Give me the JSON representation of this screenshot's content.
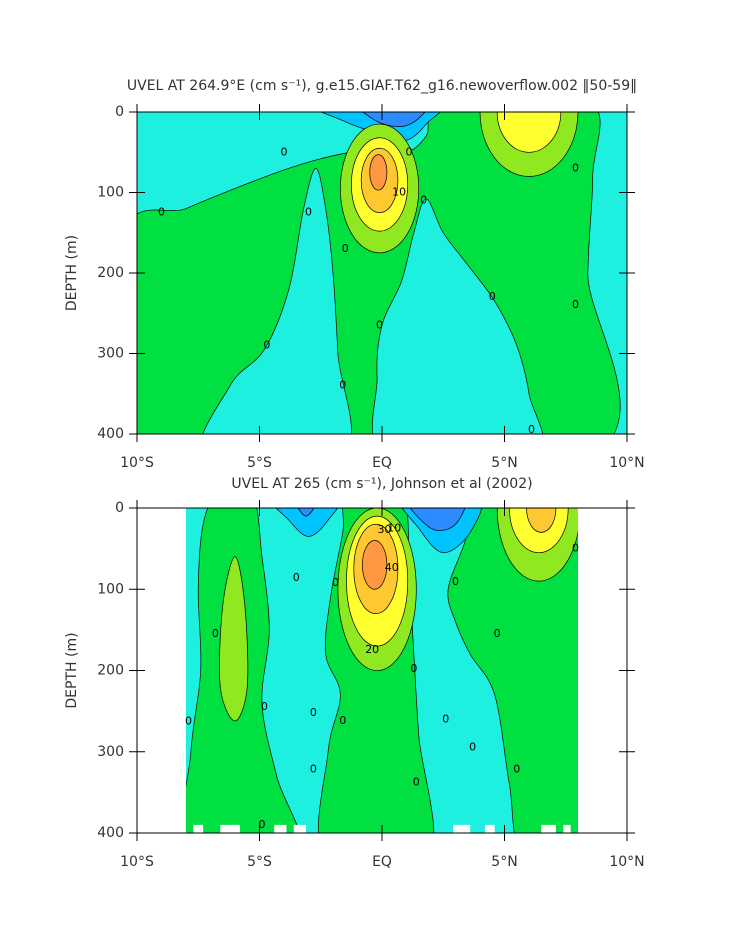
{
  "chart_data": [
    {
      "type": "contour",
      "title": "UVEL AT 264.9°E (cm s⁻¹), g.e15.GIAF.T62_g16.newoverflow.002 ‖50-59‖",
      "ylabel": "DEPTH (m)",
      "xlim": [
        -10,
        10
      ],
      "xticks": [
        {
          "value": -10,
          "label": "10°S"
        },
        {
          "value": -5,
          "label": "5°S"
        },
        {
          "value": 0,
          "label": "EQ"
        },
        {
          "value": 5,
          "label": "5°N"
        },
        {
          "value": 10,
          "label": "10°N"
        }
      ],
      "ylim": [
        400,
        0
      ],
      "yticks": [
        0,
        100,
        200,
        300,
        400
      ],
      "levels": [
        -30,
        -20,
        -10,
        0,
        10,
        20,
        30,
        40
      ],
      "colors": [
        "#2b8cff",
        "#00c4ff",
        "#1ef0e0",
        "#00e040",
        "#90e820",
        "#ffff30",
        "#ffc830",
        "#ff9840"
      ],
      "contour_labels": [
        0,
        0,
        0,
        0,
        0,
        0,
        0,
        0,
        0,
        0,
        0,
        0,
        0,
        10
      ]
    },
    {
      "type": "contour",
      "title": "UVEL AT 265 (cm s⁻¹), Johnson et al (2002)",
      "ylabel": "DEPTH (m)",
      "xlim": [
        -10,
        10
      ],
      "xticks": [
        {
          "value": -10,
          "label": "10°S"
        },
        {
          "value": -5,
          "label": "5°S"
        },
        {
          "value": 0,
          "label": "EQ"
        },
        {
          "value": 5,
          "label": "5°N"
        },
        {
          "value": 10,
          "label": "10°N"
        }
      ],
      "ylim": [
        400,
        0
      ],
      "yticks": [
        0,
        100,
        200,
        300,
        400
      ],
      "levels": [
        -30,
        -20,
        -10,
        0,
        10,
        20,
        30,
        40
      ],
      "colors": [
        "#2b8cff",
        "#00c4ff",
        "#1ef0e0",
        "#00e040",
        "#90e820",
        "#ffff30",
        "#ffc830",
        "#ff9840"
      ],
      "contour_labels": [
        0,
        0,
        0,
        0,
        0,
        0,
        0,
        0,
        0,
        0,
        0,
        0,
        0,
        0,
        0,
        0,
        0,
        10,
        20,
        30,
        40
      ]
    }
  ]
}
